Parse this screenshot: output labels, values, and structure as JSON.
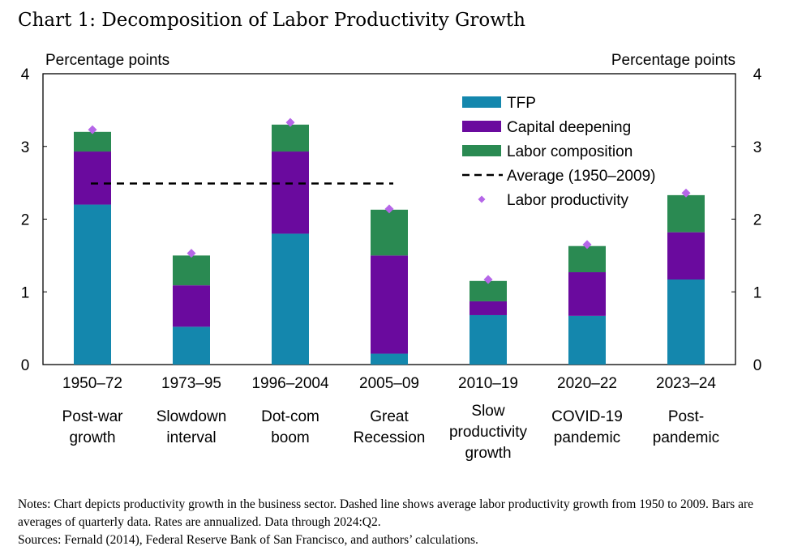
{
  "title": "Chart 1: Decomposition of Labor Productivity Growth",
  "notes": "Notes: Chart depicts productivity growth in the business sector. Dashed line shows average labor productivity growth from 1950 to 2009. Bars are averages of quarterly data. Rates are annualized. Data through 2024:Q2.",
  "sources": "Sources: Fernald (2014), Federal Reserve Bank of San Francisco, and authors’ calculations.",
  "colors": {
    "tfp": "#1487ad",
    "capital": "#6a0a9e",
    "labor_comp": "#2a8a52",
    "productivity": "#b566e8",
    "average": "#000000"
  },
  "chart_data": {
    "type": "bar",
    "stacked": true,
    "ylabel_left": "Percentage points",
    "ylabel_right": "Percentage points",
    "ylim": [
      0,
      4
    ],
    "yticks": [
      0,
      1,
      2,
      3,
      4
    ],
    "categories": [
      "1950–72",
      "1973–95",
      "1996–2004",
      "2005–09",
      "2010–19",
      "2020–22",
      "2023–24"
    ],
    "category_descriptions": [
      [
        "Post-war",
        "growth"
      ],
      [
        "Slowdown",
        "interval"
      ],
      [
        "Dot-com",
        "boom"
      ],
      [
        "Great",
        "Recession"
      ],
      [
        "Slow",
        "productivity",
        "growth"
      ],
      [
        "COVID-19",
        "pandemic"
      ],
      [
        "Post-",
        "pandemic"
      ]
    ],
    "series": [
      {
        "name": "TFP",
        "values": [
          2.2,
          0.52,
          1.8,
          0.15,
          0.68,
          0.67,
          1.17
        ]
      },
      {
        "name": "Capital deepening",
        "values": [
          0.73,
          0.57,
          1.13,
          1.35,
          0.19,
          0.6,
          0.65
        ]
      },
      {
        "name": "Labor composition",
        "values": [
          0.27,
          0.41,
          0.37,
          0.63,
          0.28,
          0.36,
          0.51
        ]
      }
    ],
    "labor_productivity": {
      "name": "Labor productivity",
      "values": [
        3.23,
        1.53,
        3.33,
        2.14,
        1.17,
        1.65,
        2.36
      ]
    },
    "average": {
      "name": "Average (1950–2009)",
      "value": 2.49,
      "span": [
        "1950–72",
        "2005–09"
      ]
    },
    "legend_position": "top-right"
  }
}
